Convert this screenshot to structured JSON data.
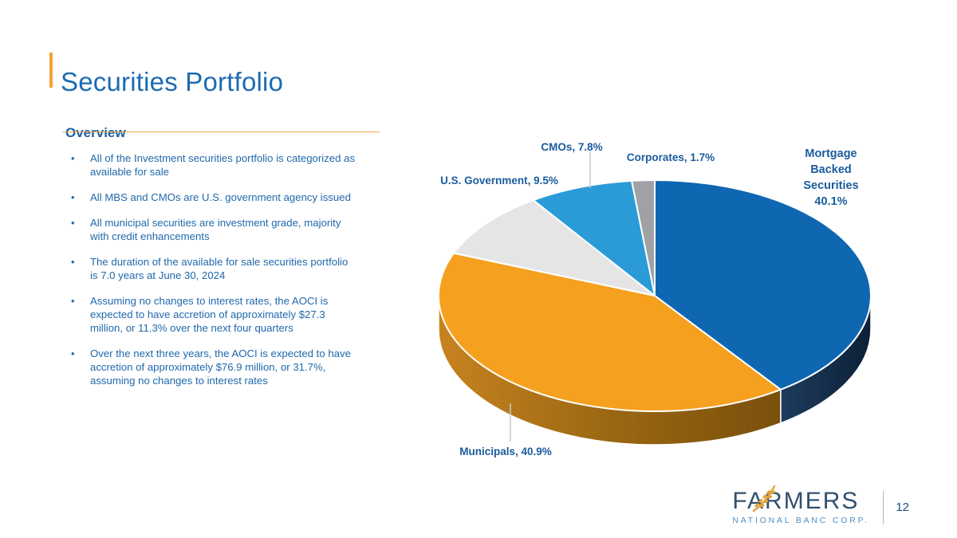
{
  "header": {
    "title": "Securities Portfolio"
  },
  "overview": {
    "heading": "Overview",
    "bullets": [
      "All of the Investment securities portfolio is categorized as\navailable for sale",
      "All MBS and CMOs are U.S. government agency issued",
      "All municipal securities are investment grade, majority\nwith credit enhancements",
      "The duration of the available for sale securities portfolio\nis 7.0 years at June 30, 2024",
      "Assuming no changes to interest rates, the AOCI is\nexpected to have accretion of approximately $27.3\nmillion, or 11.3% over the next four quarters",
      "Over the next three years, the AOCI is expected to have\naccretion of approximately $76.9 million, or 31.7%,\nassuming no changes to interest rates"
    ]
  },
  "chart_data": {
    "type": "pie",
    "style": "3d",
    "categories": [
      "Mortgage Backed Securities",
      "Municipals",
      "U.S. Government",
      "CMOs",
      "Corporates"
    ],
    "values": [
      40.1,
      40.9,
      9.5,
      7.8,
      1.7
    ],
    "unit": "%",
    "start_angle_deg": 0,
    "direction": "clockwise",
    "colors": [
      "#0F67B2",
      "#F6A01F",
      "#E5E5E6",
      "#2B9BD7",
      "#9FA1A4"
    ],
    "side_colors": [
      [
        "#1E3C5E",
        "#0C2036"
      ],
      [
        "#C8831F",
        "#9A6713",
        "#7A500B"
      ],
      [
        "#C9C9C9"
      ],
      [
        "#1D7FB5"
      ],
      [
        "#7B7E82"
      ]
    ],
    "point_labels": {
      "mbs": "Mortgage\nBacked\nSecurities\n40.1%",
      "municipals": "Municipals, 40.9%",
      "us_government": "U.S. Government, 9.5%",
      "cmos": "CMOs, 7.8%",
      "corporates": "Corporates, 1.7%"
    },
    "legend": "none",
    "label_color": "#1A5C9E",
    "leader_line_color": "#C6CACD"
  },
  "theme": {
    "accent_gold": "#F0A437",
    "title_blue": "#1C6BB3",
    "text_blue": "#2069AC",
    "rule_gold": "#F0AA45"
  },
  "footer": {
    "brand": "FARMERS",
    "sub_brand": "NATIONAL BANC CORP.",
    "page_number": "12"
  }
}
